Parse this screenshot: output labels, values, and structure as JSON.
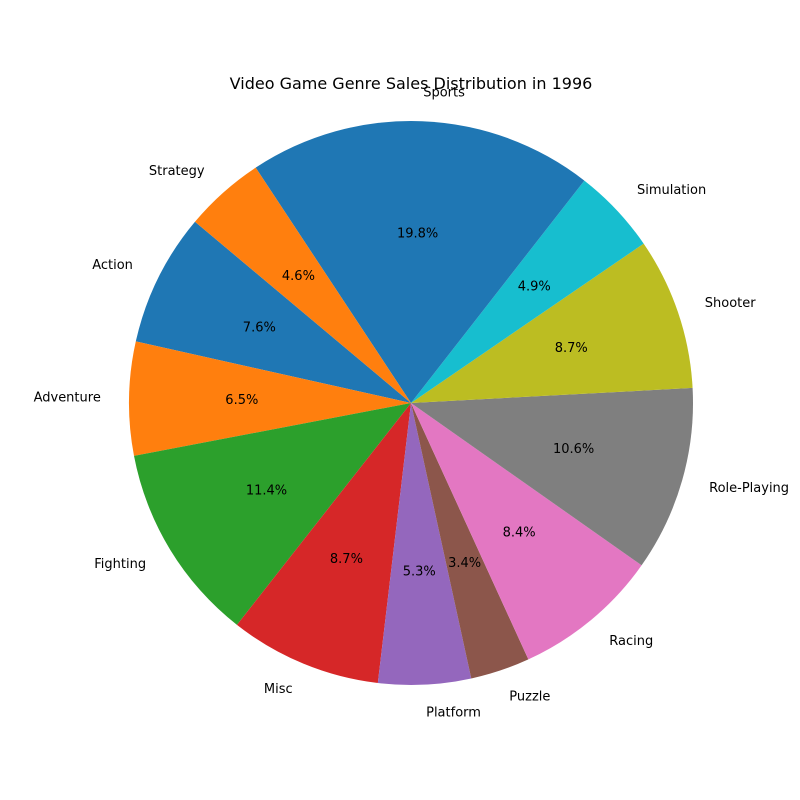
{
  "chart_data": {
    "type": "pie",
    "title": "Video Game Genre Sales Distribution in 1996",
    "categories": [
      "Action",
      "Adventure",
      "Fighting",
      "Misc",
      "Platform",
      "Puzzle",
      "Racing",
      "Role-Playing",
      "Shooter",
      "Simulation",
      "Sports",
      "Strategy"
    ],
    "values": [
      7.6,
      6.5,
      11.4,
      8.7,
      5.3,
      3.4,
      8.4,
      10.6,
      8.7,
      4.9,
      19.8,
      4.6
    ],
    "percent_labels": [
      "7.6%",
      "6.5%",
      "11.4%",
      "8.7%",
      "5.3%",
      "3.4%",
      "8.4%",
      "10.6%",
      "8.7%",
      "4.9%",
      "19.8%",
      "4.6%"
    ],
    "colors": [
      "#1f77b4",
      "#ff7f0e",
      "#2ca02c",
      "#d62728",
      "#9467bd",
      "#8c564b",
      "#e377c2",
      "#7f7f7f",
      "#bcbd22",
      "#17becf",
      "#1f77b4",
      "#ff7f0e"
    ],
    "start_angle_deg": 140,
    "direction": "counterclockwise",
    "legend": "none"
  }
}
